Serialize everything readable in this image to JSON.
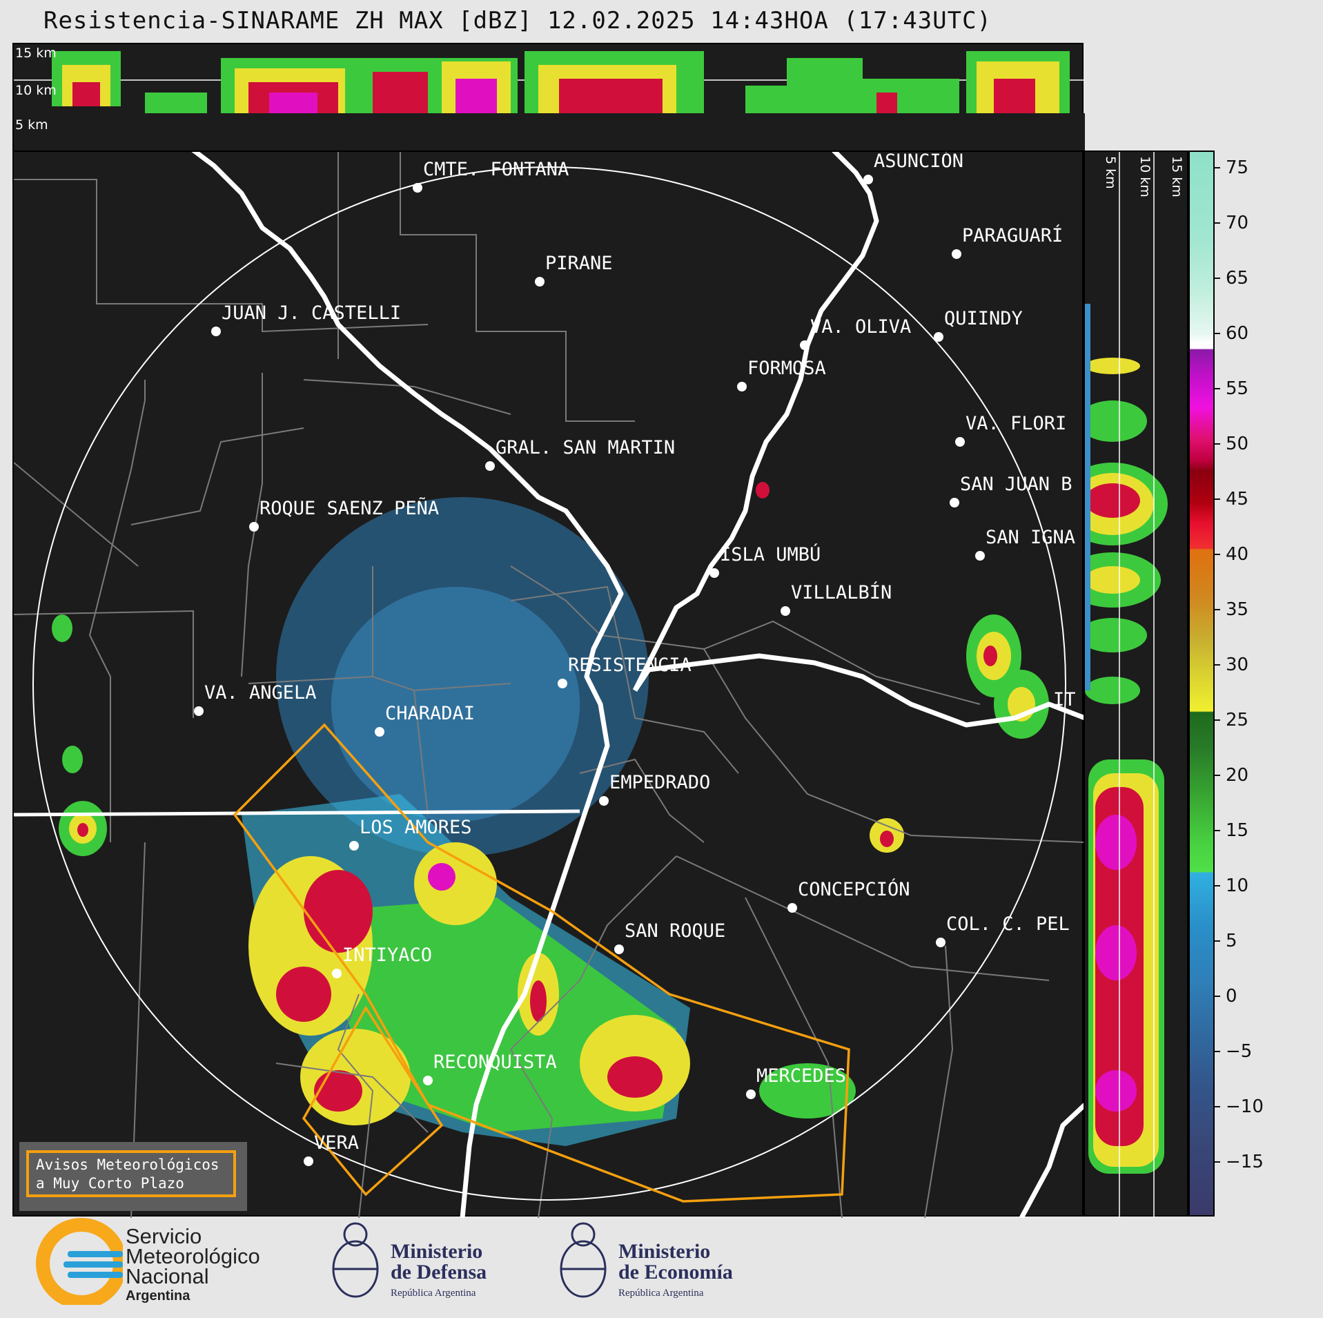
{
  "title": "Resistencia-SINARAME ZH MAX [dBZ] 12.02.2025 14:43HOA (17:43UTC)",
  "height_panel": {
    "labels": [
      "15 km",
      "10 km",
      "5 km"
    ]
  },
  "side_panel": {
    "labels": [
      "5 km",
      "10 km",
      "15 km"
    ]
  },
  "colorbar": {
    "unit": "dBZ",
    "ticks": [
      "75",
      "70",
      "65",
      "60",
      "55",
      "50",
      "45",
      "40",
      "35",
      "30",
      "25",
      "20",
      "15",
      "10",
      "5",
      "0",
      "−5",
      "−10",
      "−15"
    ],
    "range": [
      -20,
      77
    ]
  },
  "cities": [
    {
      "name": "CMTE. FONTANA"
    },
    {
      "name": "ASUNCIÓN"
    },
    {
      "name": "PIRANE"
    },
    {
      "name": "PARAGUARÍ"
    },
    {
      "name": "JUAN J. CASTELLI"
    },
    {
      "name": "VA. OLIVA"
    },
    {
      "name": "QUIINDY"
    },
    {
      "name": "FORMOSA"
    },
    {
      "name": "GRAL. SAN MARTIN"
    },
    {
      "name": "VA. FLORI"
    },
    {
      "name": "SAN JUAN B"
    },
    {
      "name": "ROQUE SAENZ PEÑA"
    },
    {
      "name": "SAN IGNA"
    },
    {
      "name": "ISLA UMBÚ"
    },
    {
      "name": "VILLALBÍN"
    },
    {
      "name": "RESISTENCIA"
    },
    {
      "name": "VA. ANGELA"
    },
    {
      "name": "CHARADAI"
    },
    {
      "name": "IT"
    },
    {
      "name": "EMPEDRADO"
    },
    {
      "name": "LOS AMORES"
    },
    {
      "name": "CONCEPCIÓN"
    },
    {
      "name": "SAN ROQUE"
    },
    {
      "name": "COL. C. PEL"
    },
    {
      "name": "INTIYACO"
    },
    {
      "name": "RECONQUISTA"
    },
    {
      "name": "MERCEDES"
    },
    {
      "name": "VERA"
    }
  ],
  "legend_box": {
    "line1": "Avisos Meteorológicos",
    "line2": "a Muy Corto Plazo"
  },
  "logos": {
    "smn": {
      "line1": "Servicio",
      "line2": "Meteorológico",
      "line3": "Nacional",
      "line4": "Argentina"
    },
    "defensa": {
      "line1": "Ministerio",
      "line2": "de Defensa",
      "line3": "República Argentina"
    },
    "economia": {
      "line1": "Ministerio",
      "line2": "de Economía",
      "line3": "República Argentina"
    }
  },
  "colors": {
    "background": "#1c1c1c",
    "border_lines": "#7a7a7a",
    "rivers": "#ffffff",
    "warning_polygon": "#f5a00f",
    "range_ring": "#ffffff"
  }
}
